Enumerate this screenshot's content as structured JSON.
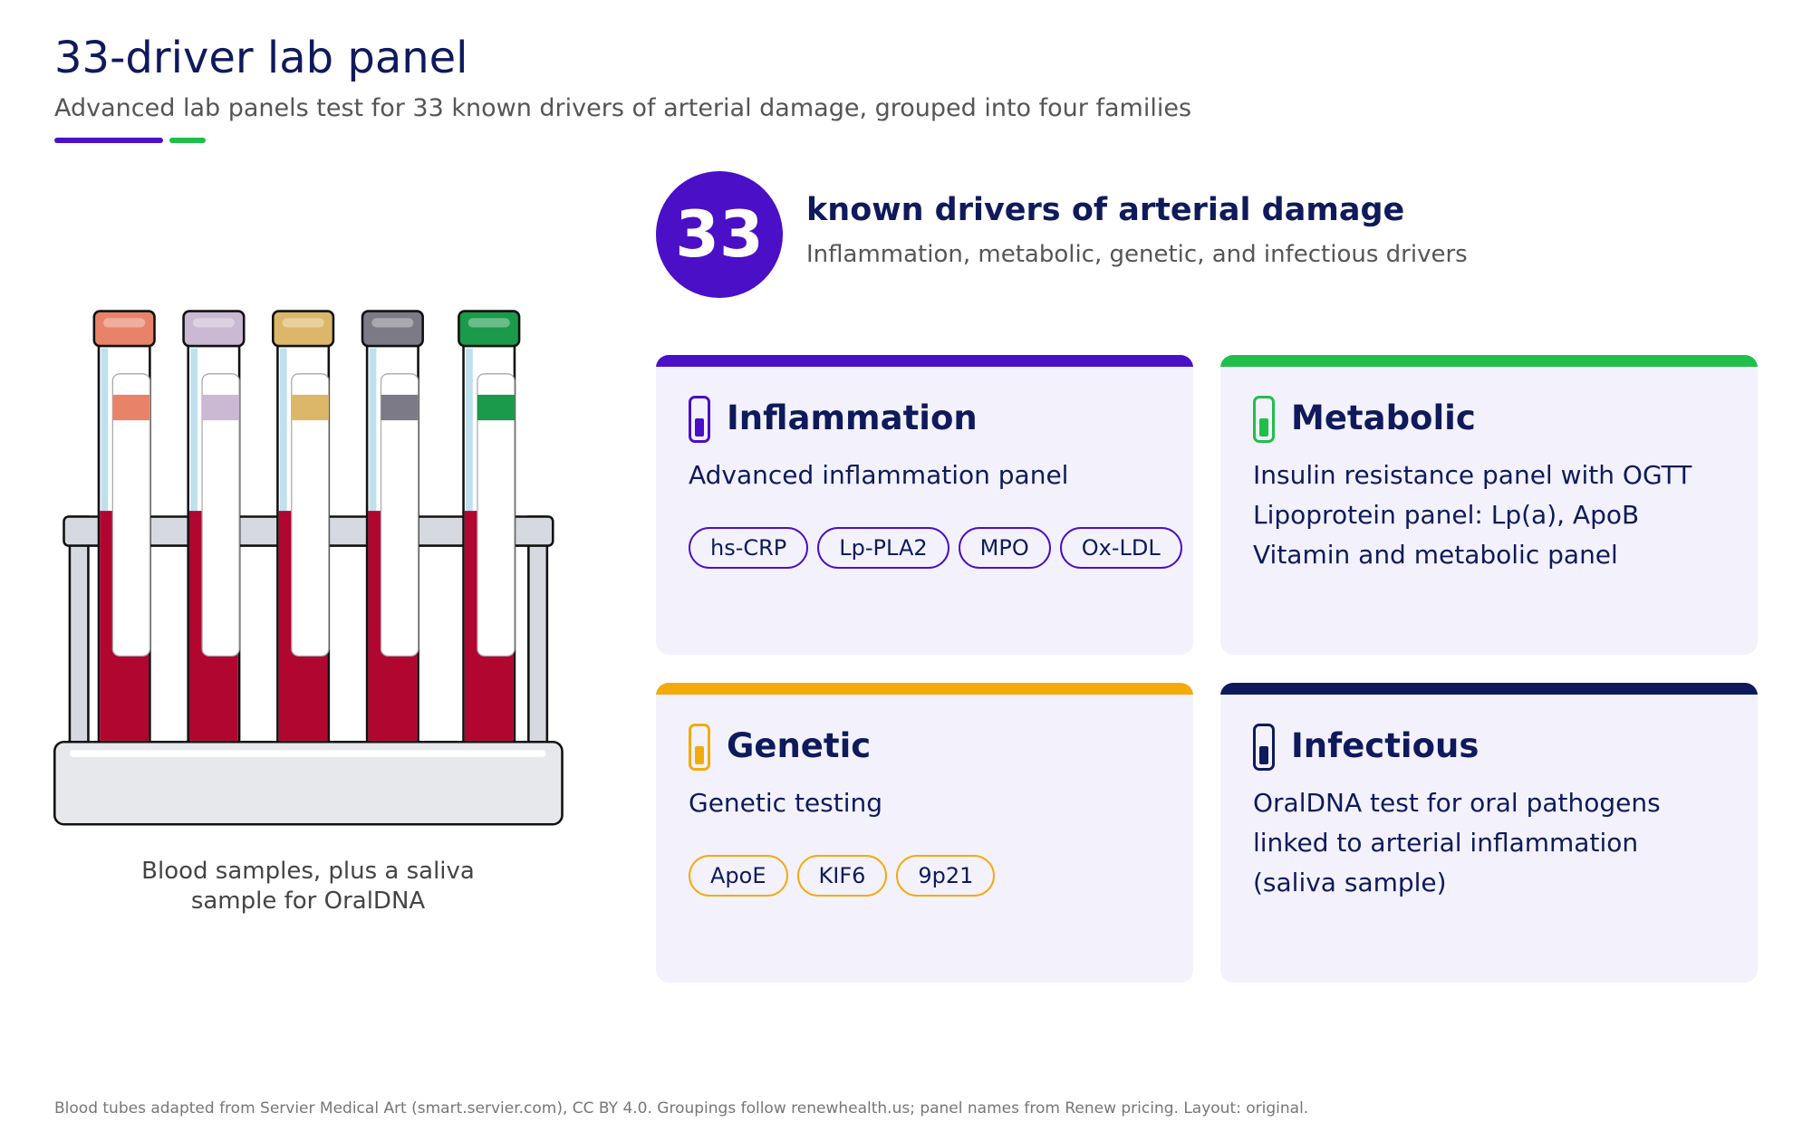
{
  "header": {
    "title": "33-driver lab panel",
    "subtitle": "Advanced lab panels test for 33 known drivers of arterial damage, grouped into four families"
  },
  "stat": {
    "number": "33",
    "label": "known drivers of arterial damage",
    "description": "Inflammation, metabolic, genetic, and infectious drivers"
  },
  "illustration": {
    "caption": [
      "Blood samples, plus a saliva",
      "sample for OralDNA"
    ]
  },
  "cards": [
    {
      "title": "Inflammation",
      "items": [
        "Advanced inflammation panel"
      ],
      "tags": [
        "hs-CRP",
        "Lp-PLA2",
        "MPO",
        "Ox-LDL"
      ]
    },
    {
      "title": "Metabolic",
      "items": [
        "Insulin resistance panel with OGTT",
        "Lipoprotein panel: Lp(a), ApoB",
        "Vitamin and metabolic panel"
      ],
      "tags": []
    },
    {
      "title": "Genetic",
      "items": [
        "Genetic testing"
      ],
      "tags": [
        "ApoE",
        "KIF6",
        "9p21"
      ]
    },
    {
      "title": "Infectious",
      "items": [
        "OralDNA test for oral pathogens",
        "linked to arterial inflammation",
        "(saliva sample)"
      ],
      "tags": []
    }
  ],
  "footer": {
    "note": "Blood tubes adapted from Servier Medical Art (smart.servier.com), CC BY 4.0. Groupings follow renewhealth.us; panel names from Renew pricing. Layout: original."
  }
}
